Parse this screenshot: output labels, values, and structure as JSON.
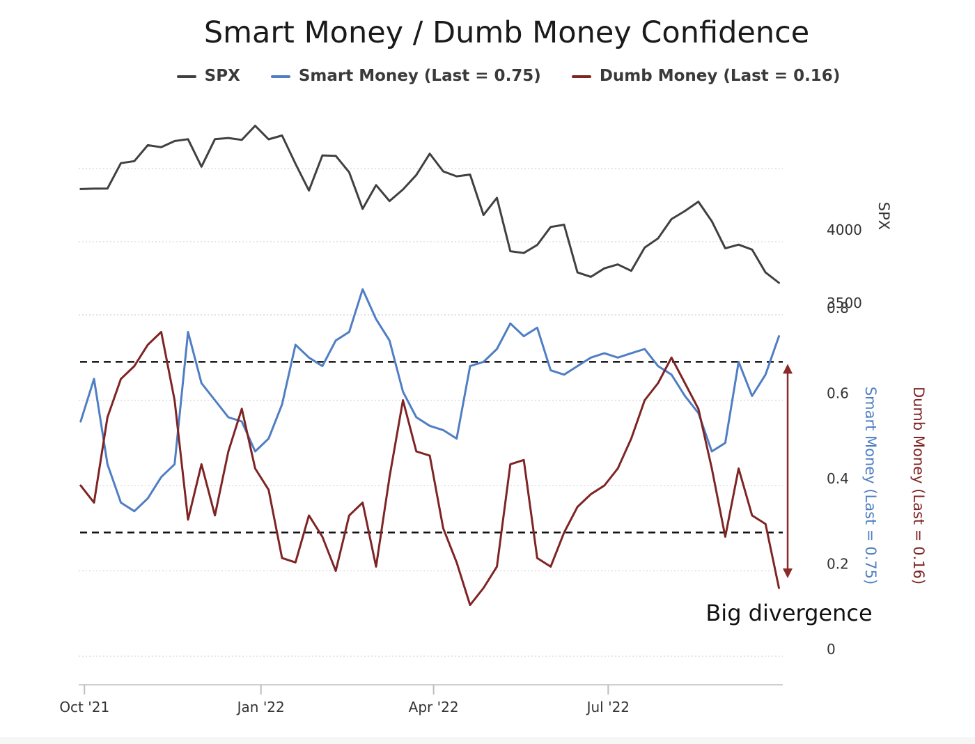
{
  "chart_data": {
    "type": "line",
    "title": "Smart Money / Dumb Money Confidence",
    "legend": {
      "placement": "top-center",
      "items": [
        {
          "label": "SPX",
          "color": "#404040"
        },
        {
          "label": "Smart Money (Last = 0.75)",
          "color": "#4f7ec3"
        },
        {
          "label": "Dumb Money (Last = 0.16)",
          "color": "#7e2424"
        }
      ]
    },
    "x_ticks": [
      "Oct '21",
      "Jan '22",
      "Apr '22",
      "Jul '22"
    ],
    "panels": [
      {
        "name": "spx",
        "axis_label": "SPX",
        "ylim": [
          3500,
          4800
        ],
        "yticks": [
          3500,
          4000
        ],
        "grid": true,
        "series": [
          {
            "name": "SPX",
            "color": "#404040",
            "points": [
              [
                "2021-09-29",
                4360
              ],
              [
                "2021-10-06",
                4363
              ],
              [
                "2021-10-13",
                4364
              ],
              [
                "2021-10-20",
                4537
              ],
              [
                "2021-10-27",
                4551
              ],
              [
                "2021-11-03",
                4660
              ],
              [
                "2021-11-10",
                4646
              ],
              [
                "2021-11-17",
                4688
              ],
              [
                "2021-11-24",
                4701
              ],
              [
                "2021-12-01",
                4513
              ],
              [
                "2021-12-08",
                4701
              ],
              [
                "2021-12-15",
                4709
              ],
              [
                "2021-12-22",
                4696
              ],
              [
                "2021-12-29",
                4793
              ],
              [
                "2022-01-05",
                4700
              ],
              [
                "2022-01-12",
                4726
              ],
              [
                "2022-01-19",
                4533
              ],
              [
                "2022-01-26",
                4350
              ],
              [
                "2022-02-02",
                4590
              ],
              [
                "2022-02-09",
                4587
              ],
              [
                "2022-02-16",
                4475
              ],
              [
                "2022-02-23",
                4225
              ],
              [
                "2022-03-02",
                4387
              ],
              [
                "2022-03-09",
                4278
              ],
              [
                "2022-03-16",
                4357
              ],
              [
                "2022-03-23",
                4456
              ],
              [
                "2022-03-30",
                4602
              ],
              [
                "2022-04-06",
                4481
              ],
              [
                "2022-04-13",
                4447
              ],
              [
                "2022-04-20",
                4459
              ],
              [
                "2022-04-27",
                4183
              ],
              [
                "2022-05-04",
                4300
              ],
              [
                "2022-05-11",
                3935
              ],
              [
                "2022-05-18",
                3923
              ],
              [
                "2022-05-25",
                3978
              ],
              [
                "2022-06-01",
                4101
              ],
              [
                "2022-06-08",
                4116
              ],
              [
                "2022-06-15",
                3790
              ],
              [
                "2022-06-22",
                3760
              ],
              [
                "2022-06-29",
                3818
              ],
              [
                "2022-07-06",
                3845
              ],
              [
                "2022-07-13",
                3801
              ],
              [
                "2022-07-20",
                3960
              ],
              [
                "2022-07-27",
                4023
              ],
              [
                "2022-08-03",
                4155
              ],
              [
                "2022-08-10",
                4210
              ],
              [
                "2022-08-17",
                4274
              ],
              [
                "2022-08-24",
                4140
              ],
              [
                "2022-08-31",
                3955
              ],
              [
                "2022-09-07",
                3980
              ],
              [
                "2022-09-14",
                3946
              ],
              [
                "2022-09-21",
                3790
              ],
              [
                "2022-09-28",
                3719
              ]
            ]
          }
        ]
      },
      {
        "name": "confidence",
        "ylim": [
          0,
          0.85
        ],
        "yticks": [
          0,
          0.2,
          0.4,
          0.6,
          0.8
        ],
        "grid": true,
        "reference_lines": [
          0.29,
          0.69
        ],
        "series": [
          {
            "name": "Smart Money",
            "axis_label": "Smart Money (Last = 0.75)",
            "color": "#4f7ec3",
            "points": [
              [
                "2021-09-29",
                0.55
              ],
              [
                "2021-10-06",
                0.65
              ],
              [
                "2021-10-13",
                0.45
              ],
              [
                "2021-10-20",
                0.36
              ],
              [
                "2021-10-27",
                0.34
              ],
              [
                "2021-11-03",
                0.37
              ],
              [
                "2021-11-10",
                0.42
              ],
              [
                "2021-11-17",
                0.45
              ],
              [
                "2021-11-24",
                0.76
              ],
              [
                "2021-12-01",
                0.64
              ],
              [
                "2021-12-08",
                0.6
              ],
              [
                "2021-12-15",
                0.56
              ],
              [
                "2021-12-22",
                0.55
              ],
              [
                "2021-12-29",
                0.48
              ],
              [
                "2022-01-05",
                0.51
              ],
              [
                "2022-01-12",
                0.59
              ],
              [
                "2022-01-19",
                0.73
              ],
              [
                "2022-01-26",
                0.7
              ],
              [
                "2022-02-02",
                0.68
              ],
              [
                "2022-02-09",
                0.74
              ],
              [
                "2022-02-16",
                0.76
              ],
              [
                "2022-02-23",
                0.86
              ],
              [
                "2022-03-02",
                0.79
              ],
              [
                "2022-03-09",
                0.74
              ],
              [
                "2022-03-16",
                0.62
              ],
              [
                "2022-03-23",
                0.56
              ],
              [
                "2022-03-30",
                0.54
              ],
              [
                "2022-04-06",
                0.53
              ],
              [
                "2022-04-13",
                0.51
              ],
              [
                "2022-04-20",
                0.68
              ],
              [
                "2022-04-27",
                0.69
              ],
              [
                "2022-05-04",
                0.72
              ],
              [
                "2022-05-11",
                0.78
              ],
              [
                "2022-05-18",
                0.75
              ],
              [
                "2022-05-25",
                0.77
              ],
              [
                "2022-06-01",
                0.67
              ],
              [
                "2022-06-08",
                0.66
              ],
              [
                "2022-06-15",
                0.68
              ],
              [
                "2022-06-22",
                0.7
              ],
              [
                "2022-06-29",
                0.71
              ],
              [
                "2022-07-06",
                0.7
              ],
              [
                "2022-07-13",
                0.71
              ],
              [
                "2022-07-20",
                0.72
              ],
              [
                "2022-07-27",
                0.68
              ],
              [
                "2022-08-03",
                0.66
              ],
              [
                "2022-08-10",
                0.61
              ],
              [
                "2022-08-17",
                0.57
              ],
              [
                "2022-08-24",
                0.48
              ],
              [
                "2022-08-31",
                0.5
              ],
              [
                "2022-09-07",
                0.69
              ],
              [
                "2022-09-14",
                0.61
              ],
              [
                "2022-09-21",
                0.66
              ],
              [
                "2022-09-28",
                0.75
              ]
            ]
          },
          {
            "name": "Dumb Money",
            "axis_label": "Dumb Money (Last = 0.16)",
            "color": "#7e2424",
            "points": [
              [
                "2021-09-29",
                0.4
              ],
              [
                "2021-10-06",
                0.36
              ],
              [
                "2021-10-13",
                0.56
              ],
              [
                "2021-10-20",
                0.65
              ],
              [
                "2021-10-27",
                0.68
              ],
              [
                "2021-11-03",
                0.73
              ],
              [
                "2021-11-10",
                0.76
              ],
              [
                "2021-11-17",
                0.6
              ],
              [
                "2021-11-24",
                0.32
              ],
              [
                "2021-12-01",
                0.45
              ],
              [
                "2021-12-08",
                0.33
              ],
              [
                "2021-12-15",
                0.48
              ],
              [
                "2021-12-22",
                0.58
              ],
              [
                "2021-12-29",
                0.44
              ],
              [
                "2022-01-05",
                0.39
              ],
              [
                "2022-01-12",
                0.23
              ],
              [
                "2022-01-19",
                0.22
              ],
              [
                "2022-01-26",
                0.33
              ],
              [
                "2022-02-02",
                0.28
              ],
              [
                "2022-02-09",
                0.2
              ],
              [
                "2022-02-16",
                0.33
              ],
              [
                "2022-02-23",
                0.36
              ],
              [
                "2022-03-02",
                0.21
              ],
              [
                "2022-03-09",
                0.42
              ],
              [
                "2022-03-16",
                0.6
              ],
              [
                "2022-03-23",
                0.48
              ],
              [
                "2022-03-30",
                0.47
              ],
              [
                "2022-04-06",
                0.3
              ],
              [
                "2022-04-13",
                0.22
              ],
              [
                "2022-04-20",
                0.12
              ],
              [
                "2022-04-27",
                0.16
              ],
              [
                "2022-05-04",
                0.21
              ],
              [
                "2022-05-11",
                0.45
              ],
              [
                "2022-05-18",
                0.46
              ],
              [
                "2022-05-25",
                0.23
              ],
              [
                "2022-06-01",
                0.21
              ],
              [
                "2022-06-08",
                0.29
              ],
              [
                "2022-06-15",
                0.35
              ],
              [
                "2022-06-22",
                0.38
              ],
              [
                "2022-06-29",
                0.4
              ],
              [
                "2022-07-06",
                0.44
              ],
              [
                "2022-07-13",
                0.51
              ],
              [
                "2022-07-20",
                0.6
              ],
              [
                "2022-07-27",
                0.64
              ],
              [
                "2022-08-03",
                0.7
              ],
              [
                "2022-08-10",
                0.64
              ],
              [
                "2022-08-17",
                0.58
              ],
              [
                "2022-08-24",
                0.44
              ],
              [
                "2022-08-31",
                0.28
              ],
              [
                "2022-09-07",
                0.44
              ],
              [
                "2022-09-14",
                0.33
              ],
              [
                "2022-09-21",
                0.31
              ],
              [
                "2022-09-28",
                0.16
              ]
            ]
          }
        ]
      }
    ],
    "annotations": [
      {
        "text": "Big divergence",
        "type": "double-arrow",
        "from": 0.69,
        "to": 0.16,
        "color": "#8b2a2a"
      }
    ]
  }
}
